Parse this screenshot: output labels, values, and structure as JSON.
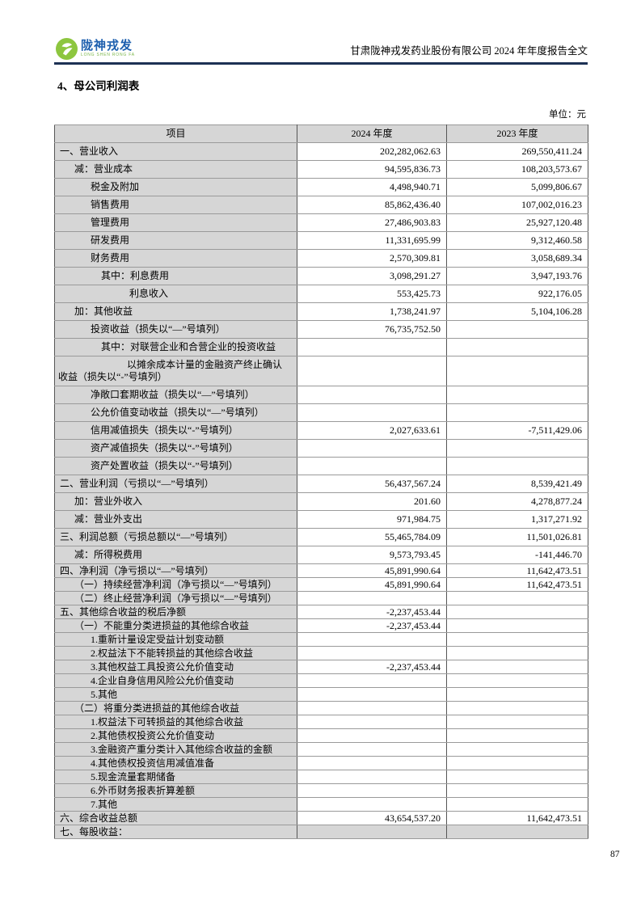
{
  "page": {
    "logo": {
      "name_cn": "陇神戎发",
      "name_en": "LONG SHEN RONG FA"
    },
    "header_title": "甘肃陇神戎发药业股份有限公司 2024 年年度报告全文",
    "section_title": "4、母公司利润表",
    "unit_label": "单位：元",
    "page_number": "87"
  },
  "colors": {
    "logo_green": "#8dc63f",
    "logo_blue": "#1d5fae",
    "header_rule": "#1d3154",
    "cell_shade": "#d6d6d6"
  },
  "table": {
    "headers": [
      "项目",
      "2024 年度",
      "2023 年度"
    ],
    "rows": [
      {
        "label": "一、营业收入",
        "indent": 0,
        "y2024": "202,282,062.63",
        "y2023": "269,550,411.24"
      },
      {
        "label": "减：营业成本",
        "indent": 1,
        "y2024": "94,595,836.73",
        "y2023": "108,203,573.67"
      },
      {
        "label": "税金及附加",
        "indent": 2,
        "y2024": "4,498,940.71",
        "y2023": "5,099,806.67"
      },
      {
        "label": "销售费用",
        "indent": 2,
        "y2024": "85,862,436.40",
        "y2023": "107,002,016.23"
      },
      {
        "label": "管理费用",
        "indent": 2,
        "y2024": "27,486,903.83",
        "y2023": "25,927,120.48"
      },
      {
        "label": "研发费用",
        "indent": 2,
        "y2024": "11,331,695.99",
        "y2023": "9,312,460.58"
      },
      {
        "label": "财务费用",
        "indent": 2,
        "y2024": "2,570,309.81",
        "y2023": "3,058,689.34"
      },
      {
        "label": "其中：利息费用",
        "indent": 3,
        "y2024": "3,098,291.27",
        "y2023": "3,947,193.76"
      },
      {
        "label": "利息收入",
        "indent": 4,
        "y2024": "553,425.73",
        "y2023": "922,176.05"
      },
      {
        "label": "加：其他收益",
        "indent": 1,
        "y2024": "1,738,241.97",
        "y2023": "5,104,106.28"
      },
      {
        "label": "投资收益（损失以“—”号填列）",
        "indent": 2,
        "y2024": "76,735,752.50",
        "y2023": ""
      },
      {
        "label": "其中：对联营企业和合营企业的投资收益",
        "indent": 3,
        "y2024": "",
        "y2023": ""
      },
      {
        "label": "以摊余成本计量的金融资产终止确认",
        "label2": "收益（损失以“-”号填列）",
        "indent": 4,
        "y2024": "",
        "y2023": ""
      },
      {
        "label": "净敞口套期收益（损失以“—”号填列）",
        "indent": 2,
        "y2024": "",
        "y2023": ""
      },
      {
        "label": "公允价值变动收益（损失以“—”号填列）",
        "indent": 2,
        "y2024": "",
        "y2023": ""
      },
      {
        "label": "信用减值损失（损失以“-”号填列）",
        "indent": 2,
        "y2024": "2,027,633.61",
        "y2023": "-7,511,429.06"
      },
      {
        "label": "资产减值损失（损失以“-”号填列）",
        "indent": 2,
        "y2024": "",
        "y2023": ""
      },
      {
        "label": "资产处置收益（损失以“-”号填列）",
        "indent": 2,
        "y2024": "",
        "y2023": ""
      },
      {
        "label": "二、营业利润（亏损以“—”号填列）",
        "indent": 0,
        "y2024": "56,437,567.24",
        "y2023": "8,539,421.49"
      },
      {
        "label": "加：营业外收入",
        "indent": 1,
        "y2024": "201.60",
        "y2023": "4,278,877.24"
      },
      {
        "label": "减：营业外支出",
        "indent": 1,
        "y2024": "971,984.75",
        "y2023": "1,317,271.92"
      },
      {
        "label": "三、利润总额（亏损总额以“—”号填列）",
        "indent": 0,
        "y2024": "55,465,784.09",
        "y2023": "11,501,026.81"
      },
      {
        "label": "减：所得税费用",
        "indent": 1,
        "y2024": "9,573,793.45",
        "y2023": "-141,446.70"
      },
      {
        "label": "四、净利润（净亏损以“—”号填列）",
        "indent": 0,
        "y2024": "45,891,990.64",
        "y2023": "11,642,473.51"
      },
      {
        "label": "（一）持续经营净利润（净亏损以“—”号填列）",
        "indent": 1,
        "y2024": "45,891,990.64",
        "y2023": "11,642,473.51"
      },
      {
        "label": "（二）终止经营净利润（净亏损以“—”号填列）",
        "indent": 1,
        "y2024": "",
        "y2023": ""
      },
      {
        "label": "五、其他综合收益的税后净额",
        "indent": 0,
        "y2024": "-2,237,453.44",
        "y2023": ""
      },
      {
        "label": "（一）不能重分类进损益的其他综合收益",
        "indent": 1,
        "y2024": "-2,237,453.44",
        "y2023": ""
      },
      {
        "label": "1.重新计量设定受益计划变动额",
        "indent": 2,
        "y2024": "",
        "y2023": ""
      },
      {
        "label": "2.权益法下不能转损益的其他综合收益",
        "indent": 2,
        "y2024": "",
        "y2023": ""
      },
      {
        "label": "3.其他权益工具投资公允价值变动",
        "indent": 2,
        "y2024": "-2,237,453.44",
        "y2023": ""
      },
      {
        "label": "4.企业自身信用风险公允价值变动",
        "indent": 2,
        "y2024": "",
        "y2023": ""
      },
      {
        "label": "5.其他",
        "indent": 2,
        "y2024": "",
        "y2023": ""
      },
      {
        "label": "（二）将重分类进损益的其他综合收益",
        "indent": 1,
        "y2024": "",
        "y2023": ""
      },
      {
        "label": "1.权益法下可转损益的其他综合收益",
        "indent": 2,
        "y2024": "",
        "y2023": ""
      },
      {
        "label": "2.其他债权投资公允价值变动",
        "indent": 2,
        "y2024": "",
        "y2023": ""
      },
      {
        "label": "3.金融资产重分类计入其他综合收益的金额",
        "indent": 2,
        "y2024": "",
        "y2023": ""
      },
      {
        "label": "4.其他债权投资信用减值准备",
        "indent": 2,
        "y2024": "",
        "y2023": ""
      },
      {
        "label": "5.现金流量套期储备",
        "indent": 2,
        "y2024": "",
        "y2023": ""
      },
      {
        "label": "6.外币财务报表折算差额",
        "indent": 2,
        "y2024": "",
        "y2023": ""
      },
      {
        "label": "7.其他",
        "indent": 2,
        "y2024": "",
        "y2023": ""
      },
      {
        "label": "六、综合收益总额",
        "indent": 0,
        "y2024": "43,654,537.20",
        "y2023": "11,642,473.51"
      },
      {
        "label": "七、每股收益：",
        "indent": 0,
        "y2024": "",
        "y2023": "",
        "shade_values": true
      }
    ]
  }
}
